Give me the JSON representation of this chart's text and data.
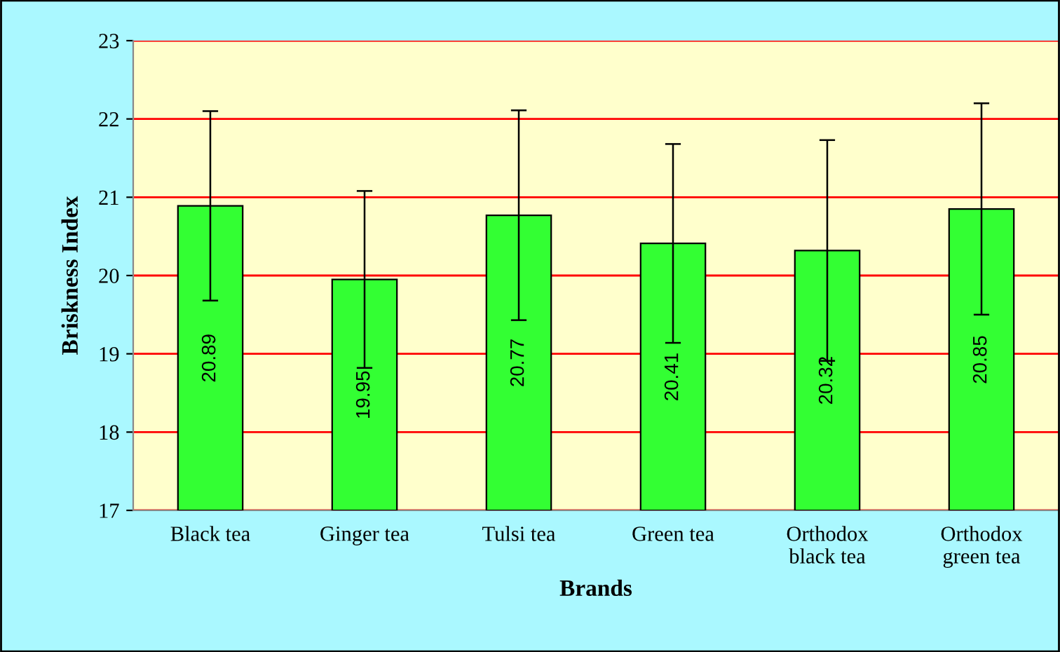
{
  "chart_data": {
    "type": "bar",
    "xlabel": "Brands",
    "ylabel": "Briskness Index",
    "categories": [
      "Black tea",
      "Ginger tea",
      "Tulsi tea",
      "Green tea",
      "Orthodox\nblack tea",
      "Orthodox\ngreen tea"
    ],
    "values": [
      20.89,
      19.95,
      20.77,
      20.41,
      20.32,
      20.85
    ],
    "errors": [
      1.21,
      1.13,
      1.34,
      1.27,
      1.41,
      1.35
    ],
    "color": "#33ff33",
    "ylim": [
      17,
      23
    ],
    "yticks": [
      17,
      18,
      19,
      20,
      21,
      22,
      23
    ],
    "grid": "y",
    "data_labels": true,
    "legend": false
  }
}
